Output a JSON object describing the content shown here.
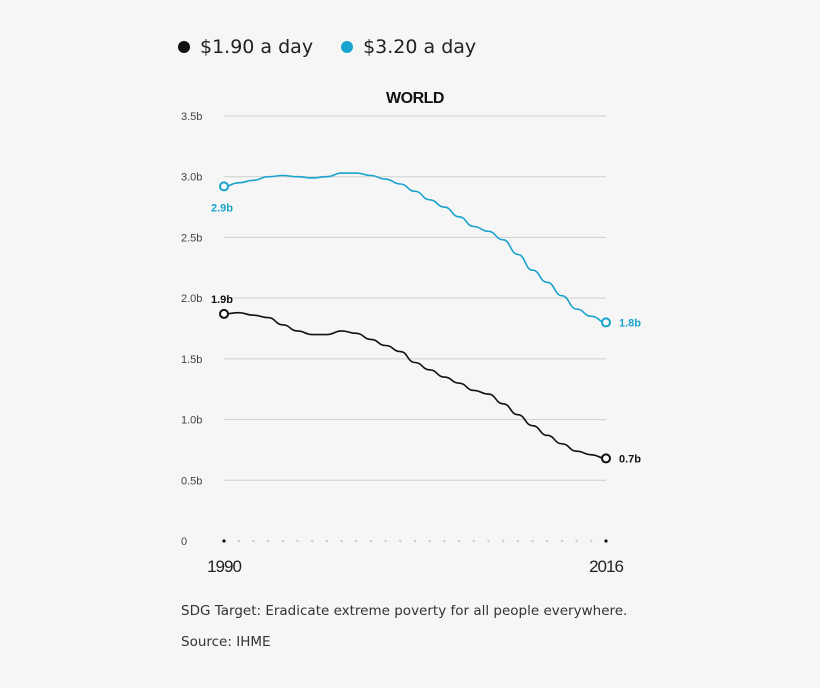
{
  "chart_data": {
    "type": "line",
    "title": "WORLD",
    "x": [
      1990,
      1991,
      1992,
      1993,
      1994,
      1995,
      1996,
      1997,
      1998,
      1999,
      2000,
      2001,
      2002,
      2003,
      2004,
      2005,
      2006,
      2007,
      2008,
      2009,
      2010,
      2011,
      2012,
      2013,
      2014,
      2015,
      2016
    ],
    "xlim": [
      1990,
      2016
    ],
    "x_tick_labels": [
      "1990",
      "2016"
    ],
    "ylim": [
      0,
      3.5
    ],
    "y_ticks": [
      0,
      0.5,
      1.0,
      1.5,
      2.0,
      2.5,
      3.0,
      3.5
    ],
    "y_tick_labels": [
      "0",
      "0.5b",
      "1.0b",
      "1.5b",
      "2.0b",
      "2.5b",
      "3.0b",
      "3.5b"
    ],
    "grid": true,
    "legend_placement": "top-left",
    "series": [
      {
        "name": "$1.90 a day",
        "color": "#111111",
        "values": [
          1.87,
          1.88,
          1.86,
          1.84,
          1.78,
          1.73,
          1.7,
          1.7,
          1.73,
          1.71,
          1.66,
          1.61,
          1.56,
          1.47,
          1.41,
          1.35,
          1.3,
          1.24,
          1.21,
          1.13,
          1.04,
          0.95,
          0.87,
          0.8,
          0.74,
          0.71,
          0.68
        ],
        "start_label": "1.9b",
        "end_label": "0.7b"
      },
      {
        "name": "$3.20 a day",
        "color": "#1aa3cc",
        "values": [
          2.92,
          2.95,
          2.97,
          3.0,
          3.01,
          3.0,
          2.99,
          3.0,
          3.03,
          3.03,
          3.01,
          2.98,
          2.94,
          2.88,
          2.81,
          2.75,
          2.67,
          2.59,
          2.55,
          2.48,
          2.36,
          2.23,
          2.13,
          2.02,
          1.91,
          1.85,
          1.8
        ],
        "start_label": "2.9b",
        "end_label": "1.8b"
      }
    ]
  },
  "footer": {
    "note": "SDG Target: Eradicate extreme poverty for all people everywhere.",
    "source": "Source: IHME"
  }
}
